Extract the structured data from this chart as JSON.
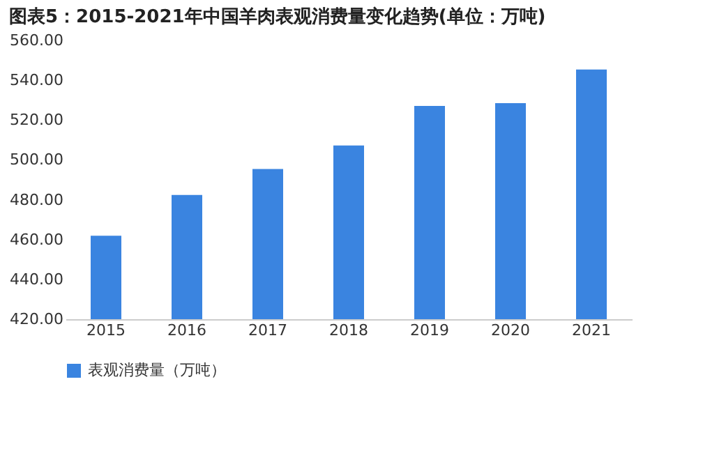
{
  "chart_data": {
    "type": "bar",
    "title": "图表5：2015-2021年中国羊肉表观消费量变化趋势(单位：万吨)",
    "categories": [
      "2015",
      "2016",
      "2017",
      "2018",
      "2019",
      "2020",
      "2021"
    ],
    "series": [
      {
        "name": "表观消费量（万吨）",
        "color": "#3a84e0",
        "values": [
          461.9,
          482.4,
          495.4,
          507.2,
          527.1,
          528.5,
          545.4
        ]
      }
    ],
    "ylim": [
      420,
      560
    ],
    "yticks": [
      {
        "value": 420,
        "label": "420.00"
      },
      {
        "value": 440,
        "label": "440.00"
      },
      {
        "value": 460,
        "label": "460.00"
      },
      {
        "value": 480,
        "label": "480.00"
      },
      {
        "value": 500,
        "label": "500.00"
      },
      {
        "value": 520,
        "label": "520.00"
      },
      {
        "value": 540,
        "label": "540.00"
      },
      {
        "value": 560,
        "label": "560.00"
      }
    ],
    "grid": false,
    "legend": "bottom"
  }
}
